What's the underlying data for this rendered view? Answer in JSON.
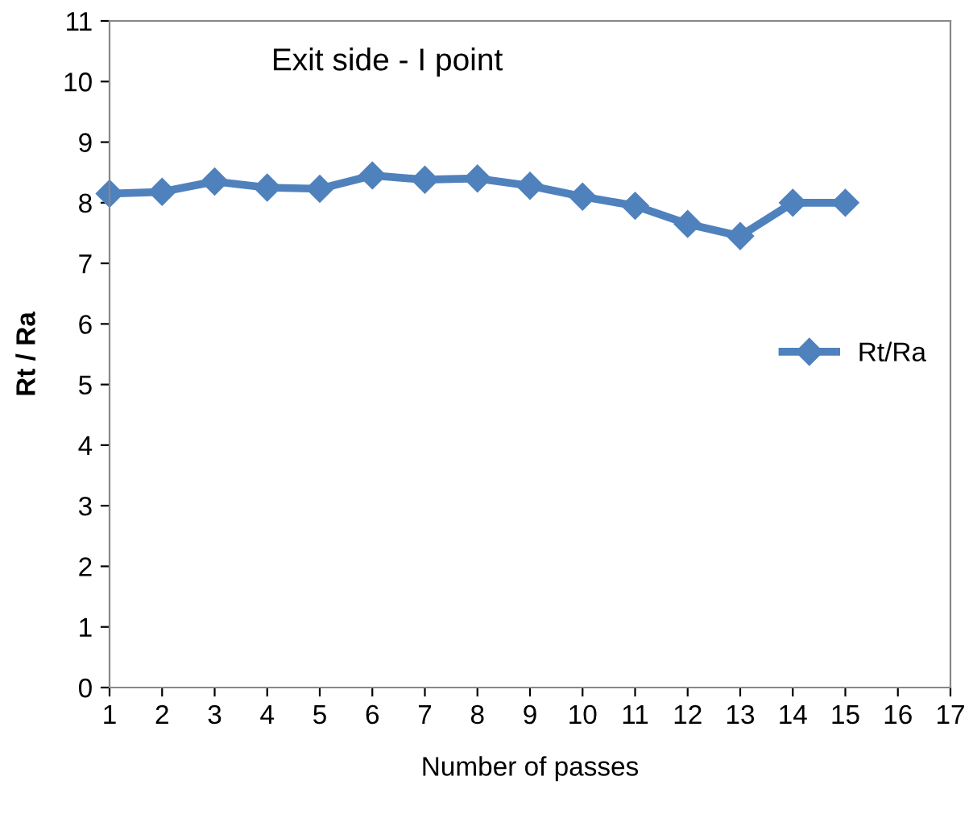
{
  "chart_data": {
    "type": "line",
    "title": "Exit side - I point",
    "xlabel": "Number of passes",
    "ylabel": "Rt / Ra",
    "x": [
      1,
      2,
      3,
      4,
      5,
      6,
      7,
      8,
      9,
      10,
      11,
      12,
      13,
      14,
      15
    ],
    "series": [
      {
        "name": "Rt/Ra",
        "color": "#4f81bd",
        "values": [
          8.15,
          8.18,
          8.35,
          8.25,
          8.23,
          8.45,
          8.38,
          8.4,
          8.28,
          8.1,
          7.95,
          7.65,
          7.45,
          8.0,
          8.0
        ]
      }
    ],
    "xlim": [
      1,
      17
    ],
    "xticks": [
      1,
      2,
      3,
      4,
      5,
      6,
      7,
      8,
      9,
      10,
      11,
      12,
      13,
      14,
      15,
      16,
      17
    ],
    "ylim": [
      0,
      11
    ],
    "yticks": [
      0,
      1,
      2,
      3,
      4,
      5,
      6,
      7,
      8,
      9,
      10,
      11
    ],
    "marker": "diamond",
    "line_style": "solid",
    "grid": false,
    "legend": "right"
  }
}
